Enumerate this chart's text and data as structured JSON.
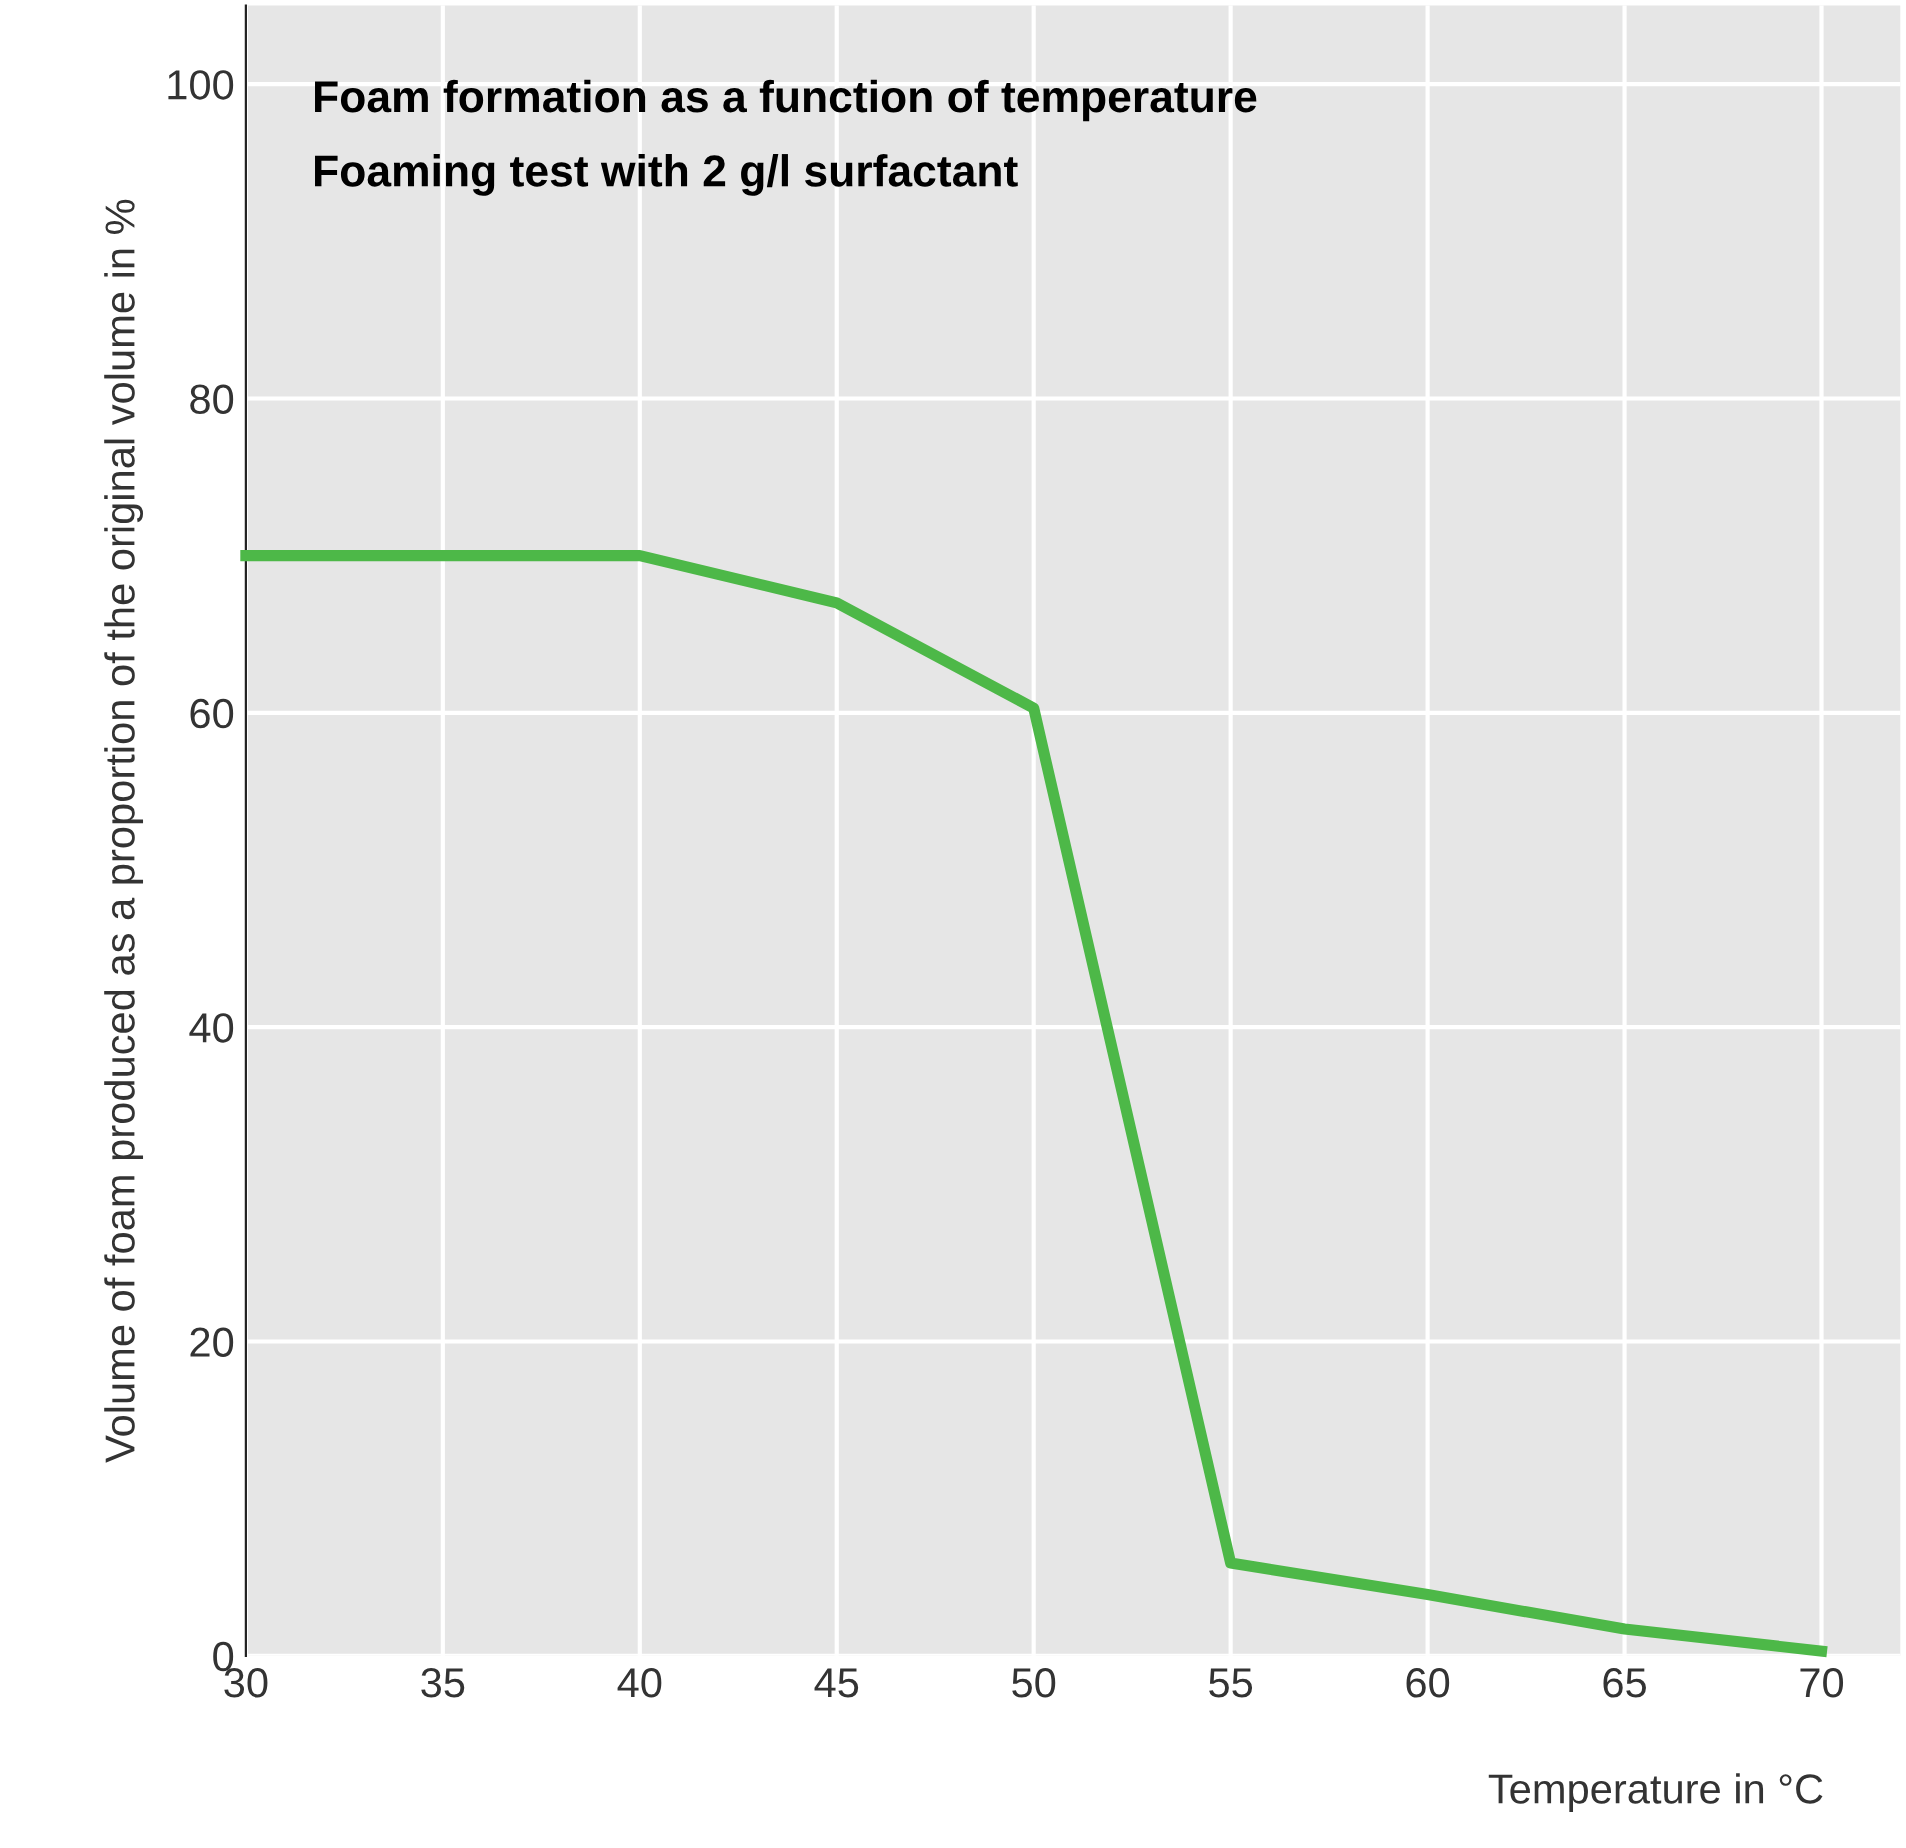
{
  "chart_data": {
    "type": "line",
    "title": "Foam formation as a function of temperature",
    "subtitle": "Foaming test with 2 g/l surfactant",
    "xlabel": "Temperature in °C",
    "ylabel": "Volume of foam produced as a proportion of the original volume in %",
    "x": [
      30,
      40,
      45,
      50,
      55,
      60,
      65,
      70
    ],
    "series": [
      {
        "color": "#4db848",
        "values": [
          70,
          70,
          67,
          60.3,
          5.9,
          3.9,
          1.7,
          0.3
        ]
      }
    ],
    "xlim": [
      30,
      72
    ],
    "ylim": [
      0,
      105
    ],
    "xticks": [
      30,
      35,
      40,
      45,
      50,
      55,
      60,
      65,
      70
    ],
    "yticks": [
      0,
      20,
      40,
      60,
      80,
      100
    ],
    "grid": true,
    "marker": "none",
    "line_style": "solid"
  }
}
